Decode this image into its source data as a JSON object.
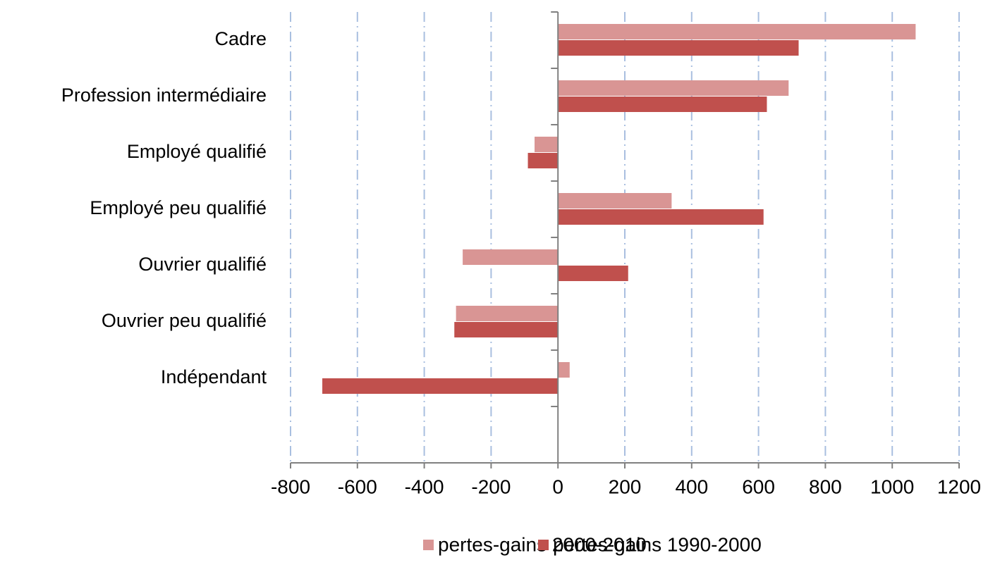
{
  "chart_data": {
    "type": "hbar",
    "categories": [
      "Cadre",
      "Profession intermédiaire",
      "Employé qualifié",
      "Employé peu qualifié",
      "Ouvrier qualifié",
      "Ouvrier peu qualifié",
      "Indépendant",
      null
    ],
    "series": [
      {
        "name": "pertes-gains 2000-2010",
        "color": "#d99594",
        "values": [
          1070,
          690,
          -70,
          340,
          -285,
          -305,
          35,
          null
        ]
      },
      {
        "name": "pertes-gains 1990-2000",
        "color": "#c0504d",
        "values": [
          720,
          625,
          -90,
          615,
          210,
          -310,
          -705,
          null
        ]
      }
    ],
    "xlim": [
      -800,
      1200
    ],
    "xticks": [
      -800,
      -600,
      -400,
      -200,
      0,
      200,
      400,
      600,
      800,
      1000,
      1200
    ],
    "grid": true,
    "legend": "bottom"
  }
}
